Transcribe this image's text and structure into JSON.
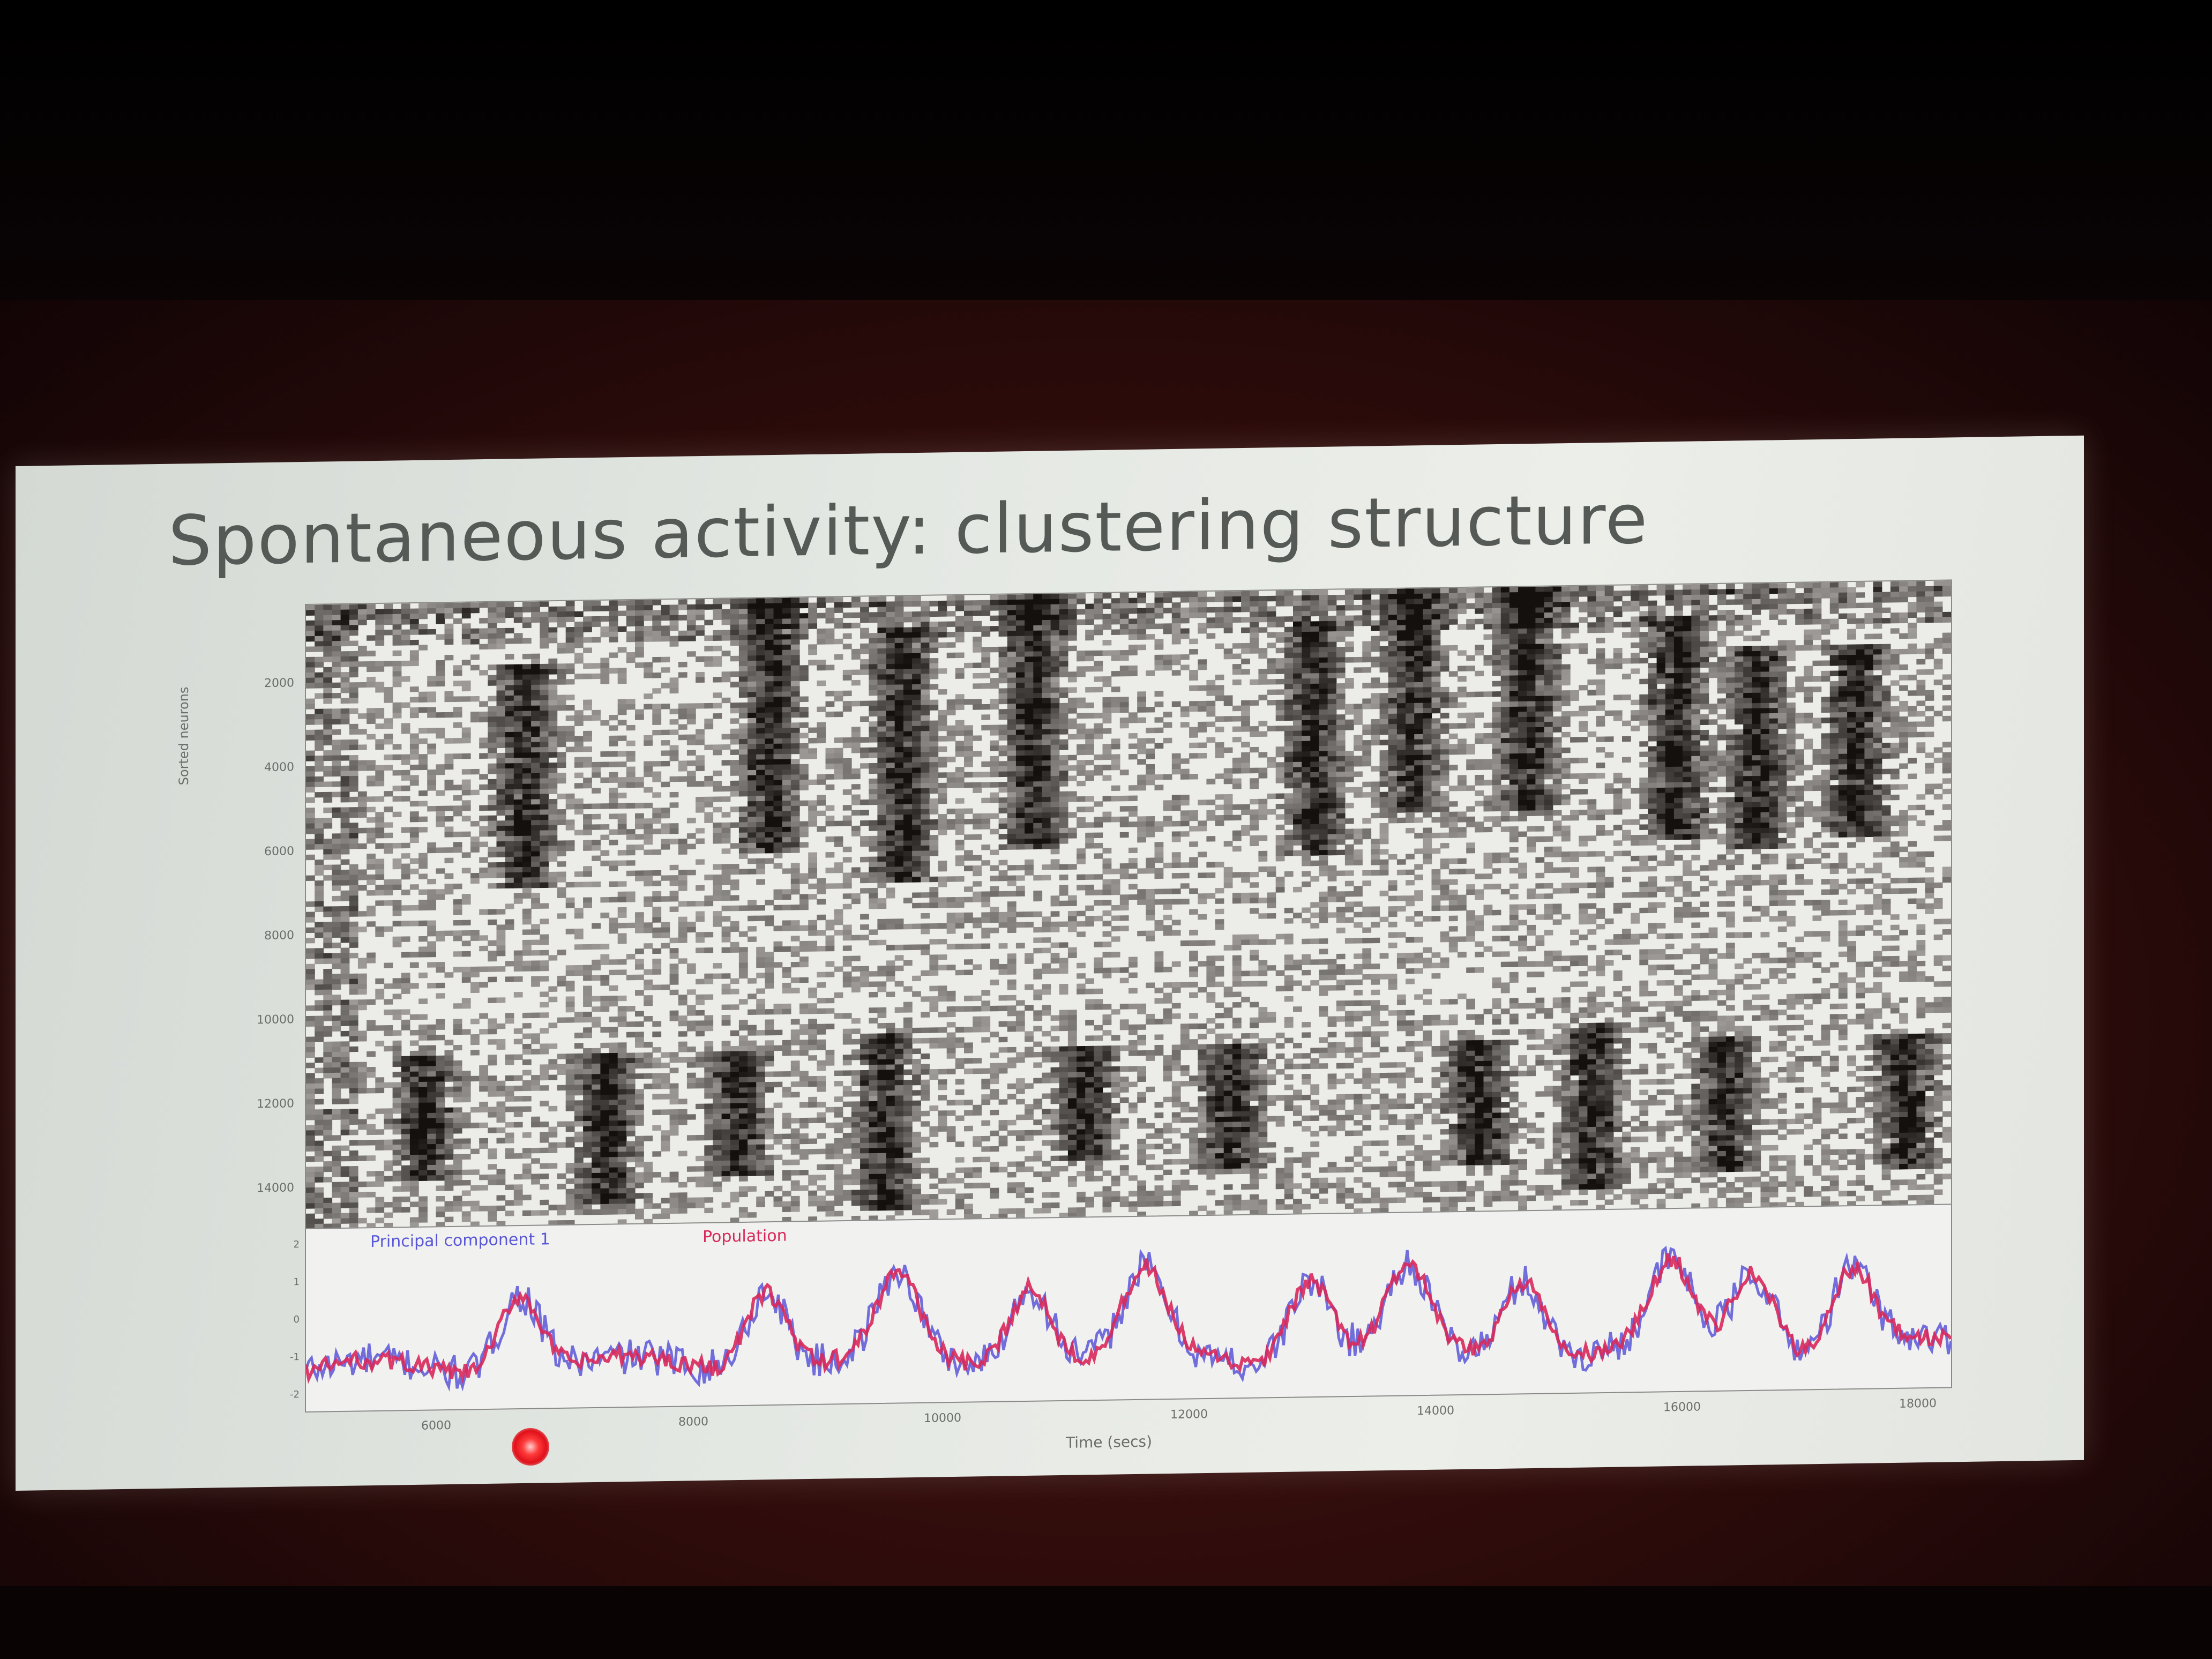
{
  "slide": {
    "title": "Spontaneous activity: clustering structure"
  },
  "raster_plot": {
    "y_label": "Sorted neurons",
    "y_ticks": [
      "2000",
      "4000",
      "6000",
      "8000",
      "10000",
      "12000",
      "14000"
    ],
    "colormap": "grayscale",
    "background_color": "#ecece9"
  },
  "trace_plot": {
    "legend": [
      "Principal component 1",
      "Population"
    ],
    "y_ticks": [
      "2",
      "1",
      "0",
      "-1",
      "-2"
    ],
    "x_ticks": [
      "6000",
      "8000",
      "10000",
      "12000",
      "14000",
      "16000",
      "18000"
    ],
    "x_label": "Time (secs)",
    "colors": {
      "pc1": "#5a57d8",
      "population": "#d8285a"
    }
  },
  "chart_data": {
    "type": "line",
    "title": "",
    "xlabel": "Time (secs)",
    "ylabel": "",
    "series": [
      {
        "name": "Principal component 1"
      },
      {
        "name": "Population"
      }
    ]
  },
  "icons": {
    "pointer": "laser-pointer-dot"
  }
}
